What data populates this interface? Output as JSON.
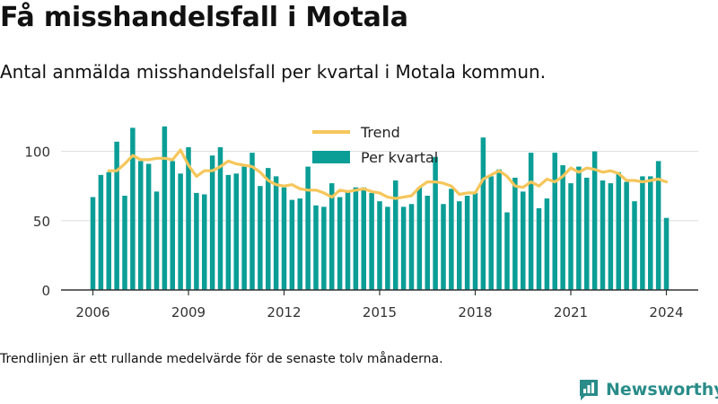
{
  "title": "Få misshandelsfall i Motala",
  "subtitle": "Antal anmälda misshandelsfall per kvartal i Motala kommun.",
  "footnote": "Trendlinjen är ett rullande medelvärde för de senaste tolv månaderna.",
  "brand": {
    "name": "Newsworthy",
    "icon": "newsworthy-logo-icon"
  },
  "colors": {
    "bars": "#0a9e96",
    "trend": "#f6c65b",
    "axis": "#333333",
    "grid": "#dddddd"
  },
  "chart_data": {
    "type": "bar",
    "x_start": 2006.0,
    "x_step": 0.25,
    "values": [
      67,
      83,
      85,
      107,
      68,
      117,
      93,
      91,
      71,
      118,
      93,
      84,
      103,
      70,
      69,
      97,
      103,
      83,
      84,
      89,
      99,
      75,
      88,
      82,
      74,
      65,
      66,
      89,
      61,
      60,
      77,
      67,
      71,
      74,
      74,
      70,
      64,
      60,
      79,
      60,
      62,
      74,
      68,
      96,
      62,
      73,
      64,
      68,
      70,
      110,
      82,
      87,
      56,
      81,
      71,
      99,
      59,
      66,
      99,
      90,
      77,
      89,
      81,
      100,
      79,
      77,
      85,
      78,
      64,
      82,
      82,
      93,
      52
    ],
    "series": [
      {
        "name": "Per kvartal",
        "type": "bar"
      },
      {
        "name": "Trend",
        "type": "line",
        "values": [
          86,
          86,
          91,
          97,
          94,
          94,
          95,
          95,
          94,
          101,
          90,
          82,
          86,
          86,
          89,
          93,
          91,
          90,
          89,
          85,
          79,
          76,
          75,
          76,
          73,
          72,
          72,
          70,
          67,
          72,
          71,
          72,
          73,
          71,
          70,
          67,
          66,
          67,
          68,
          74,
          78,
          78,
          77,
          75,
          69,
          70,
          70,
          80,
          83,
          86,
          82,
          75,
          74,
          78,
          75,
          80,
          78,
          82,
          88,
          85,
          88,
          87,
          85,
          86,
          84,
          79,
          79,
          78,
          79,
          80,
          78
        ]
      }
    ],
    "x_ticks": [
      2006,
      2009,
      2012,
      2015,
      2018,
      2021,
      2024
    ],
    "y_ticks": [
      0,
      50,
      100
    ],
    "ylim": [
      0,
      125
    ],
    "xlim": [
      2005.0,
      2025.0
    ],
    "legend": {
      "position": "top-center",
      "entries": [
        "Trend",
        "Per kvartal"
      ]
    },
    "grid": true
  }
}
